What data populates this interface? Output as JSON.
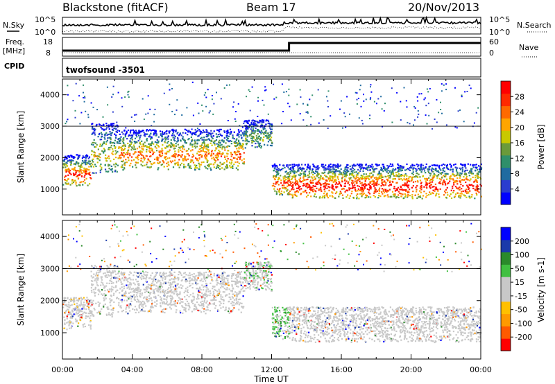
{
  "header": {
    "station": "Blackstone (fitACF)",
    "beam": "Beam 17",
    "date": "20/Nov/2013"
  },
  "panels": {
    "nsky_label": "N.Sky",
    "nsearch_label": "N.Search",
    "count_ticks": [
      "10^5",
      "10^0"
    ],
    "freq_label_line1": "Freq.",
    "freq_label_line2": "[MHz]",
    "freq_ticks": [
      "18",
      "8"
    ],
    "nave_label": "Nave",
    "nave_ticks": [
      "60",
      "0"
    ],
    "cpid_label": "CPID",
    "cpid_value": "twofsound -3501"
  },
  "colors": {
    "power_scale": [
      "#0000ff",
      "#2a3ccf",
      "#1f6ba0",
      "#2f8f6a",
      "#6a9a3a",
      "#c8c800",
      "#ffa500",
      "#ff6a00",
      "#ff2a00",
      "#ff0000"
    ],
    "velocity_scale": [
      "#ff0000",
      "#ff5a00",
      "#ff9a00",
      "#ffc000",
      "#c8c8c8",
      "#c8c8c8",
      "#40c040",
      "#2a8a2a",
      "#1a3aaa",
      "#0000ff"
    ]
  },
  "chart_data": [
    {
      "type": "heatmap",
      "quantity": "Power",
      "xlabel": "Time UT",
      "ylabel": "Slant Range [km]",
      "xticks": [
        "00:00",
        "04:00",
        "08:00",
        "12:00",
        "16:00",
        "20:00",
        "00:00"
      ],
      "xlim": [
        0,
        24
      ],
      "ylim": [
        180,
        4500
      ],
      "yticks": [
        "1000",
        "2000",
        "3000",
        "4000"
      ],
      "colorbar": {
        "label": "Power [dB]",
        "ticks": [
          "28",
          "24",
          "20",
          "16",
          "12",
          "8",
          "4"
        ],
        "range": [
          0,
          30
        ]
      },
      "scatter_bands": [
        {
          "t_start": 0.0,
          "t_end": 1.6,
          "range_low": 1100,
          "range_high": 2100,
          "peak_power": 28
        },
        {
          "t_start": 1.6,
          "t_end": 3.2,
          "range_low": 1500,
          "range_high": 3100,
          "peak_power": 18
        },
        {
          "t_start": 3.2,
          "t_end": 10.4,
          "range_low": 1600,
          "range_high": 2900,
          "peak_power": 24
        },
        {
          "t_start": 10.4,
          "t_end": 12.0,
          "range_low": 2300,
          "range_high": 3200,
          "peak_power": 14
        },
        {
          "t_start": 12.0,
          "t_end": 13.0,
          "range_low": 800,
          "range_high": 1800,
          "peak_power": 26
        },
        {
          "t_start": 13.0,
          "t_end": 24.0,
          "range_low": 700,
          "range_high": 1800,
          "peak_power": 30
        }
      ]
    },
    {
      "type": "heatmap",
      "quantity": "Velocity",
      "xlabel": "Time UT",
      "ylabel": "Slant Range [km]",
      "xticks": [
        "00:00",
        "04:00",
        "08:00",
        "12:00",
        "16:00",
        "20:00",
        "00:00"
      ],
      "xlim": [
        0,
        24
      ],
      "ylim": [
        180,
        4500
      ],
      "yticks": [
        "1000",
        "2000",
        "3000",
        "4000"
      ],
      "colorbar": {
        "label": "Velocity [m s-1]",
        "ticks": [
          "200",
          "100",
          "50",
          "15",
          "-15",
          "-50",
          "-100",
          "-200"
        ],
        "range": [
          -250,
          250
        ]
      },
      "scatter_bands": [
        {
          "t_start": 0.0,
          "t_end": 1.6,
          "range_low": 1100,
          "range_high": 2100,
          "mean_velocity": -10
        },
        {
          "t_start": 1.6,
          "t_end": 3.2,
          "range_low": 1500,
          "range_high": 3100,
          "mean_velocity": 0
        },
        {
          "t_start": 3.2,
          "t_end": 10.4,
          "range_low": 1600,
          "range_high": 2900,
          "mean_velocity": 5
        },
        {
          "t_start": 10.4,
          "t_end": 12.0,
          "range_low": 2300,
          "range_high": 3200,
          "mean_velocity": 20
        },
        {
          "t_start": 12.0,
          "t_end": 13.0,
          "range_low": 800,
          "range_high": 1800,
          "mean_velocity": 60
        },
        {
          "t_start": 13.0,
          "t_end": 24.0,
          "range_low": 700,
          "range_high": 1800,
          "mean_velocity": 0
        }
      ]
    }
  ]
}
